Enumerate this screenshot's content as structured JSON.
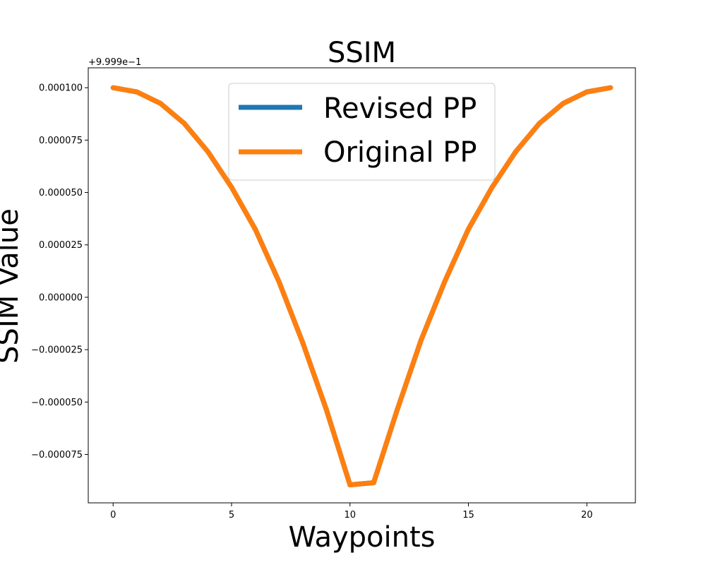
{
  "chart_data": {
    "type": "line",
    "title": "SSIM",
    "xlabel": "Waypoints",
    "ylabel": "SSIM Value",
    "y_offset_label": "+9.999e−1",
    "xlim": [
      -1.05,
      22.05
    ],
    "ylim": [
      -9.81e-05,
      0.0001095
    ],
    "xticks": [
      0,
      5,
      10,
      15,
      20
    ],
    "xtick_labels": [
      "0",
      "5",
      "10",
      "15",
      "20"
    ],
    "yticks": [
      0.0001,
      7.5e-05,
      5e-05,
      2.5e-05,
      0.0,
      -2.5e-05,
      -5e-05,
      -7.5e-05
    ],
    "ytick_labels": [
      "0.000100",
      "0.000075",
      "0.000050",
      "0.000025",
      "0.000000",
      "−0.000025",
      "−0.000050",
      "−0.000075"
    ],
    "grid": false,
    "legend_position": "top-center",
    "x": [
      0,
      1,
      2,
      3,
      4,
      5,
      6,
      7,
      8,
      9,
      10,
      11,
      12,
      13,
      14,
      15,
      16,
      17,
      18,
      19,
      20,
      21
    ],
    "series": [
      {
        "name": "Revised PP",
        "color": "#1f77b4",
        "values": [
          0.0001,
          9.8e-05,
          9.25e-05,
          8.3e-05,
          6.95e-05,
          5.25e-05,
          3.25e-05,
          7.5e-06,
          -2.15e-05,
          -5.35e-05,
          -8.95e-05,
          -8.85e-05,
          -5.35e-05,
          -2.05e-05,
          7.5e-06,
          3.25e-05,
          5.25e-05,
          6.95e-05,
          8.3e-05,
          9.25e-05,
          9.8e-05,
          0.0001
        ]
      },
      {
        "name": "Original PP",
        "color": "#ff7f0e",
        "values": [
          0.0001,
          9.8e-05,
          9.25e-05,
          8.3e-05,
          6.95e-05,
          5.25e-05,
          3.25e-05,
          7.5e-06,
          -2.15e-05,
          -5.35e-05,
          -8.95e-05,
          -8.85e-05,
          -5.35e-05,
          -2.05e-05,
          7.5e-06,
          3.25e-05,
          5.25e-05,
          6.95e-05,
          8.3e-05,
          9.25e-05,
          9.8e-05,
          0.0001
        ]
      }
    ]
  }
}
